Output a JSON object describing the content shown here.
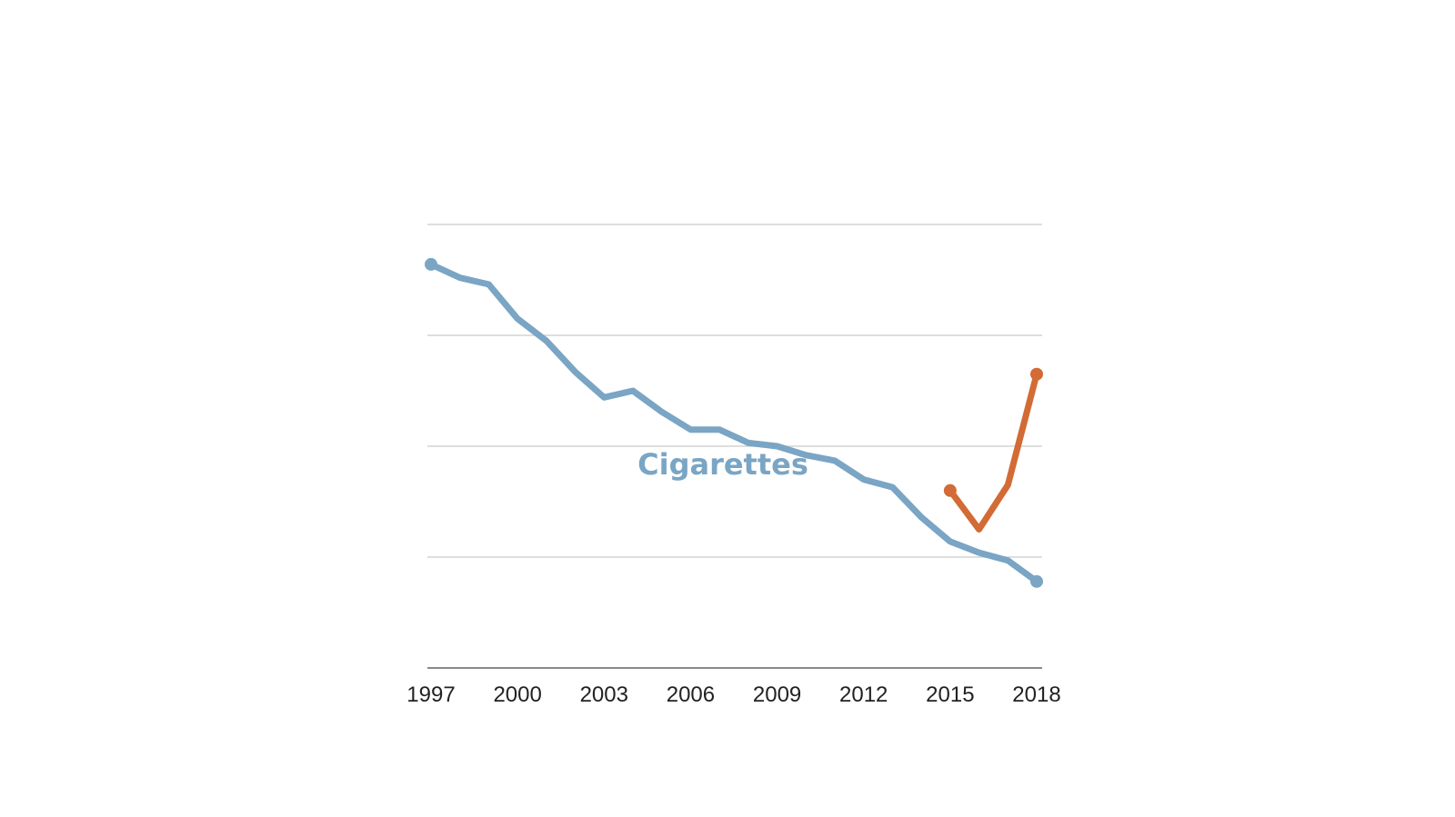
{
  "chart_data": {
    "type": "line",
    "title": "",
    "xlabel": "",
    "ylabel": "",
    "xlim": [
      1997,
      2018
    ],
    "ylim": [
      0,
      4
    ],
    "grid": true,
    "x_ticks": [
      1997,
      2000,
      2003,
      2006,
      2009,
      2012,
      2015,
      2018
    ],
    "y_gridlines": [
      0,
      1,
      2,
      3,
      4
    ],
    "series": [
      {
        "name": "Cigarettes",
        "color": "#7aa5c4",
        "x": [
          1997,
          1998,
          1999,
          2000,
          2001,
          2002,
          2003,
          2004,
          2005,
          2006,
          2007,
          2008,
          2009,
          2010,
          2011,
          2012,
          2013,
          2014,
          2015,
          2016,
          2017,
          2018
        ],
        "values": [
          3.64,
          3.52,
          3.46,
          3.15,
          2.95,
          2.67,
          2.44,
          2.5,
          2.31,
          2.15,
          2.15,
          2.03,
          2.0,
          1.92,
          1.87,
          1.7,
          1.63,
          1.36,
          1.14,
          1.04,
          0.97,
          0.78
        ]
      },
      {
        "name": "",
        "color": "#d26b35",
        "x": [
          2015,
          2016,
          2017,
          2018
        ],
        "values": [
          1.6,
          1.25,
          1.65,
          2.65
        ]
      }
    ]
  }
}
